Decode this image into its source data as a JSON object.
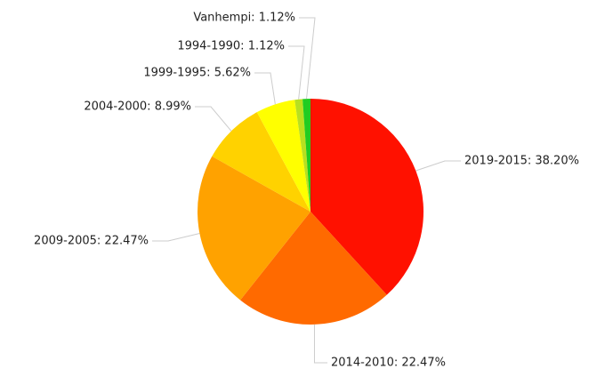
{
  "chart_data": {
    "type": "pie",
    "values": [
      38.2,
      22.47,
      22.47,
      8.99,
      5.62,
      1.12,
      1.12
    ],
    "value_labels": [
      "2019-2015: 38.20%",
      "2014-2010: 22.47%",
      "2009-2005: 22.47%",
      "2004-2000: 8.99%",
      "1999-1995: 5.62%",
      "1994-1990: 1.12%",
      "Vanhempi: 1.12%"
    ],
    "colors": [
      "#ff1100",
      "#ff6a00",
      "#ffa200",
      "#ffd200",
      "#ffff00",
      "#b8e020",
      "#22cc22"
    ]
  }
}
